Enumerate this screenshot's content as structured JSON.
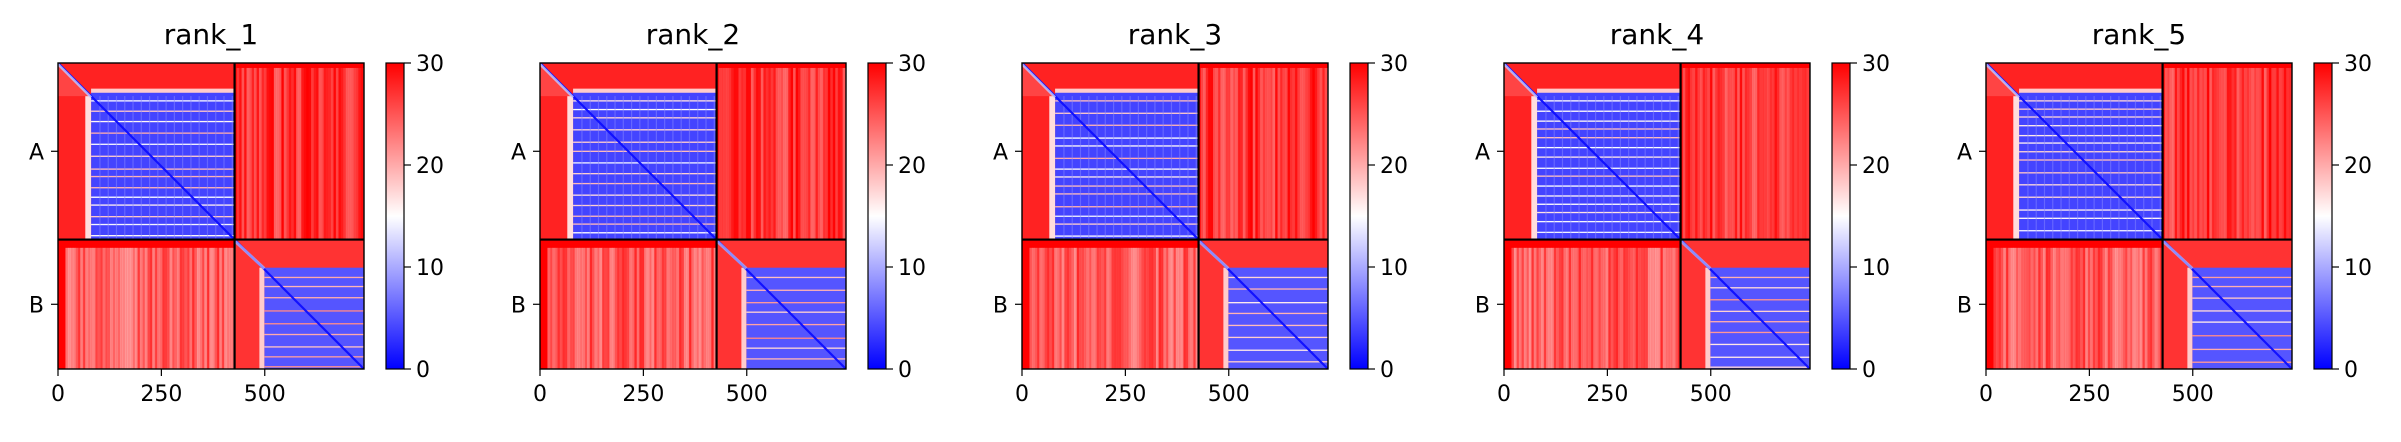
{
  "colors": {
    "low": "#0000ff",
    "mid": "#ffffff",
    "high": "#ff0000",
    "axis": "#000000",
    "chain_boundary": "#000000"
  },
  "colorbar": {
    "min": 0,
    "max": 30,
    "ticks": [
      "0",
      "10",
      "20",
      "30"
    ],
    "cmap": "bwr"
  },
  "chart_data": [
    {
      "type": "heatmap",
      "title": "rank_1",
      "x_ticks": [
        "0",
        "250",
        "500"
      ],
      "chains": [
        "A",
        "B"
      ],
      "chain_lengths": [
        427,
        313
      ],
      "n_residues": 740,
      "xlim": [
        0,
        740
      ],
      "ylim": [
        740,
        0
      ],
      "value_range": [
        0,
        30
      ],
      "colorbar_ticks": [
        0,
        10,
        20,
        30
      ]
    },
    {
      "type": "heatmap",
      "title": "rank_2",
      "x_ticks": [
        "0",
        "250",
        "500"
      ],
      "chains": [
        "A",
        "B"
      ],
      "chain_lengths": [
        427,
        313
      ],
      "n_residues": 740,
      "xlim": [
        0,
        740
      ],
      "ylim": [
        740,
        0
      ],
      "value_range": [
        0,
        30
      ],
      "colorbar_ticks": [
        0,
        10,
        20,
        30
      ]
    },
    {
      "type": "heatmap",
      "title": "rank_3",
      "x_ticks": [
        "0",
        "250",
        "500"
      ],
      "chains": [
        "A",
        "B"
      ],
      "chain_lengths": [
        427,
        313
      ],
      "n_residues": 740,
      "xlim": [
        0,
        740
      ],
      "ylim": [
        740,
        0
      ],
      "value_range": [
        0,
        30
      ],
      "colorbar_ticks": [
        0,
        10,
        20,
        30
      ]
    },
    {
      "type": "heatmap",
      "title": "rank_4",
      "x_ticks": [
        "0",
        "250",
        "500"
      ],
      "chains": [
        "A",
        "B"
      ],
      "chain_lengths": [
        427,
        313
      ],
      "n_residues": 740,
      "xlim": [
        0,
        740
      ],
      "ylim": [
        740,
        0
      ],
      "value_range": [
        0,
        30
      ],
      "colorbar_ticks": [
        0,
        10,
        20,
        30
      ]
    },
    {
      "type": "heatmap",
      "title": "rank_5",
      "x_ticks": [
        "0",
        "250",
        "500"
      ],
      "chains": [
        "A",
        "B"
      ],
      "chain_lengths": [
        427,
        313
      ],
      "n_residues": 740,
      "xlim": [
        0,
        740
      ],
      "ylim": [
        740,
        0
      ],
      "value_range": [
        0,
        30
      ],
      "colorbar_ticks": [
        0,
        10,
        20,
        30
      ]
    }
  ]
}
